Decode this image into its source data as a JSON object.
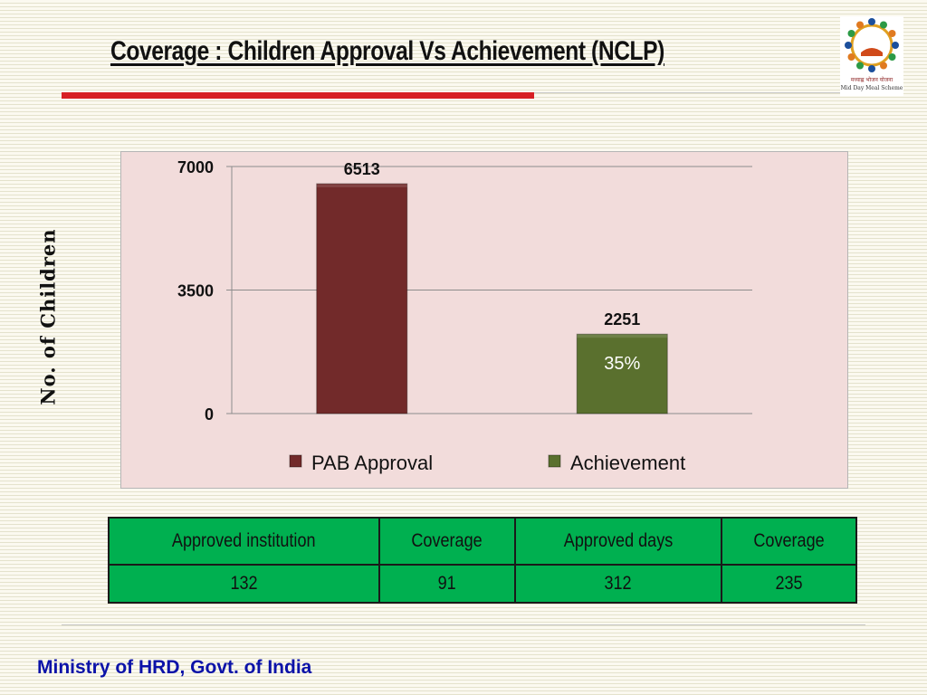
{
  "page": {
    "title": "Coverage : Children Approval Vs Achievement (NCLP)",
    "footer": "Ministry of HRD, Govt. of India"
  },
  "logo": {
    "icon": "mid-day-meal-logo",
    "caption_hindi": "मध्याह्न भोजन योजना",
    "caption_english": "Mid Day Meal Scheme"
  },
  "chart_data": {
    "type": "bar",
    "title": "",
    "ylabel": "No. of Children",
    "xlabel": "",
    "ylim": [
      0,
      7000
    ],
    "yticks": [
      0,
      3500,
      7000
    ],
    "grid": true,
    "legend_position": "bottom",
    "categories": [
      "PAB Approval",
      "Achievement"
    ],
    "values": [
      6513,
      2251
    ],
    "data_labels": [
      "6513",
      "2251"
    ],
    "annotation": "35%",
    "colors": [
      "#722a2a",
      "#5a702e"
    ]
  },
  "table": {
    "headers": [
      "Approved institution",
      "Coverage",
      "Approved days",
      "Coverage"
    ],
    "rows": [
      [
        "132",
        "91",
        "312",
        "235"
      ]
    ]
  }
}
